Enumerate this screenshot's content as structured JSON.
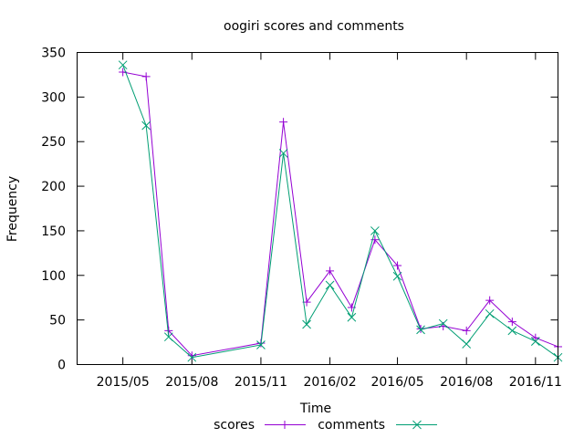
{
  "chart_data": {
    "type": "line",
    "title": "oogiri scores and comments",
    "xlabel": "Time",
    "ylabel": "Frequency",
    "x_tick_labels": [
      "2015/05",
      "2015/08",
      "2015/11",
      "2016/02",
      "2016/05",
      "2016/08",
      "2016/11"
    ],
    "y_ticks": [
      0,
      50,
      100,
      150,
      200,
      250,
      300,
      350
    ],
    "xlim": [
      "2015-03-01",
      "2016-12-01"
    ],
    "ylim": [
      0,
      350
    ],
    "grid": false,
    "legend_position": "bottom-center",
    "x": [
      "2015-05-01",
      "2015-06-01",
      "2015-07-01",
      "2015-08-01",
      "2015-11-01",
      "2015-12-01",
      "2016-01-01",
      "2016-02-01",
      "2016-03-01",
      "2016-04-01",
      "2016-05-01",
      "2016-06-01",
      "2016-07-01",
      "2016-08-01",
      "2016-09-01",
      "2016-10-01",
      "2016-11-01",
      "2016-12-01"
    ],
    "series": [
      {
        "name": "scores",
        "marker": "+",
        "color": "#9400d3",
        "values": [
          328,
          323,
          38,
          10,
          24,
          272,
          70,
          105,
          64,
          140,
          111,
          40,
          43,
          38,
          72,
          48,
          30,
          20
        ]
      },
      {
        "name": "comments",
        "marker": "x",
        "color": "#009e73",
        "values": [
          336,
          268,
          31,
          8,
          22,
          237,
          45,
          89,
          53,
          150,
          99,
          39,
          46,
          23,
          57,
          38,
          26,
          8
        ]
      }
    ]
  }
}
